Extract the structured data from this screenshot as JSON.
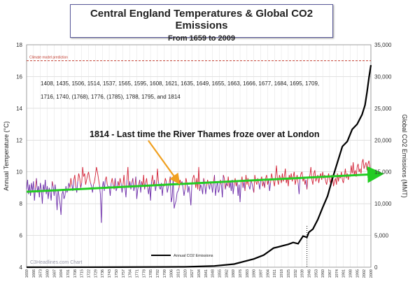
{
  "chart_data": {
    "type": "line",
    "title": "Central England Temperatures & Global CO2 Emissions",
    "subtitle": "From 1659 to 2009",
    "ylabel_left": "Annual Temperature (°C)",
    "ylabel_right": "Global CO2 Emissions (MMT)",
    "xlim": [
      1659,
      2009
    ],
    "ylim_left": [
      4,
      18
    ],
    "ylim_right": [
      0,
      35000
    ],
    "left_ticks": [
      4,
      6,
      8,
      10,
      12,
      14,
      16,
      18
    ],
    "right_ticks": [
      0,
      5000,
      10000,
      15000,
      20000,
      25000,
      30000,
      35000
    ],
    "right_tick_labels": [
      "0",
      "5,000",
      "10,000",
      "15,000",
      "20,000",
      "25,000",
      "30,000",
      "35,000"
    ],
    "x_ticks": [
      1659,
      1666,
      1673,
      1680,
      1687,
      1694,
      1701,
      1708,
      1715,
      1722,
      1729,
      1736,
      1743,
      1750,
      1757,
      1764,
      1771,
      1778,
      1785,
      1792,
      1799,
      1806,
      1813,
      1820,
      1827,
      1834,
      1841,
      1848,
      1855,
      1862,
      1869,
      1876,
      1883,
      1890,
      1897,
      1904,
      1911,
      1918,
      1925,
      1932,
      1939,
      1946,
      1953,
      1960,
      1967,
      1974,
      1981,
      1988,
      1995,
      2002,
      2009
    ],
    "model_line": {
      "label": "Climate model prediction",
      "value": 17.0,
      "color": "#c0392b"
    },
    "thames_years": "1408, 1435, 1506, 1514, 1537, 1565, 1595, 1608, 1621, 1635, 1649, 1655, 1663, 1666, 1677, 1684, 1695, 1709,",
    "thames_years_2": "1716, 1740, (1768), 1776, (1785), 1788, 1795, and 1814",
    "callout": "1814 - Last time the River Thames froze over at London",
    "legend_label": "Annual CO2 Emissions",
    "watermark": "C3Headlines.com Chart",
    "trend": {
      "x": [
        1659,
        2009
      ],
      "y": [
        8.75,
        9.85
      ],
      "color": "#22cc22"
    },
    "co2": {
      "name": "Annual CO2 Emissions",
      "color": "#000000",
      "x": [
        1659,
        1750,
        1800,
        1820,
        1850,
        1870,
        1880,
        1890,
        1900,
        1910,
        1915,
        1920,
        1925,
        1930,
        1935,
        1940,
        1944,
        1946,
        1950,
        1955,
        1960,
        1965,
        1970,
        1975,
        1980,
        1985,
        1990,
        1995,
        2000,
        2003,
        2005,
        2007,
        2009
      ],
      "y": [
        0,
        10,
        40,
        60,
        200,
        500,
        900,
        1300,
        1900,
        3000,
        3200,
        3400,
        3600,
        3900,
        3700,
        4900,
        4700,
        5500,
        6000,
        7500,
        9400,
        11200,
        14000,
        16500,
        19000,
        19800,
        21700,
        22500,
        24000,
        25500,
        27500,
        29800,
        31800
      ]
    },
    "temperature": {
      "name": "Annual Temperature",
      "colors": {
        "above": "#d22035",
        "below": "#6a2aa8"
      },
      "baseline": 9.25,
      "x_start": 1659,
      "values": [
        8.9,
        9.5,
        8.6,
        9.2,
        8.5,
        9.3,
        8.8,
        9.4,
        8.2,
        9.0,
        9.6,
        8.7,
        9.1,
        8.4,
        9.3,
        8.9,
        8.0,
        9.2,
        8.8,
        9.5,
        8.6,
        9.1,
        8.3,
        9.0,
        8.7,
        8.2,
        9.4,
        9.1,
        8.5,
        9.2,
        8.6,
        7.6,
        8.9,
        8.4,
        8.0,
        7.3,
        8.6,
        8.8,
        8.3,
        8.5,
        9.1,
        8.7,
        8.9,
        9.3,
        9.0,
        9.6,
        9.2,
        8.8,
        9.5,
        9.8,
        9.1,
        8.7,
        9.4,
        9.9,
        9.6,
        9.0,
        9.3,
        10.3,
        9.7,
        9.9,
        9.2,
        9.5,
        9.8,
        10.0,
        9.6,
        9.3,
        9.1,
        8.7,
        9.2,
        9.4,
        9.8,
        10.3,
        10.0,
        9.6,
        9.2,
        8.6,
        6.8,
        9.0,
        9.4,
        8.8,
        9.5,
        9.7,
        9.2,
        9.0,
        9.1,
        8.5,
        9.3,
        9.6,
        9.2,
        8.9,
        9.6,
        8.8,
        9.0,
        9.4,
        9.1,
        9.6,
        9.3,
        8.7,
        9.2,
        9.8,
        9.0,
        8.4,
        9.5,
        10.3,
        9.0,
        9.4,
        8.9,
        9.3,
        9.6,
        8.8,
        9.1,
        9.7,
        8.3,
        8.9,
        9.2,
        9.5,
        8.7,
        9.4,
        9.1,
        9.8,
        8.9,
        9.3,
        9.6,
        9.0,
        8.6,
        9.2,
        8.2,
        9.4,
        9.8,
        9.1,
        9.5,
        8.8,
        9.2,
        10.2,
        9.4,
        9.0,
        8.9,
        9.3,
        8.5,
        9.2,
        9.1,
        9.6,
        9.4,
        8.7,
        9.0,
        9.3,
        9.7,
        8.1,
        8.4,
        9.6,
        7.7,
        8.0,
        8.2,
        8.7,
        8.8,
        9.0,
        9.5,
        9.2,
        9.4,
        9.0,
        8.5,
        8.9,
        9.6,
        9.3,
        8.7,
        9.1,
        8.6,
        7.9,
        9.2,
        9.6,
        9.8,
        9.5,
        9.0,
        9.6,
        8.9,
        10.3,
        8.8,
        9.2,
        9.0,
        8.6,
        9.6,
        9.3,
        8.6,
        9.1,
        9.5,
        9.2,
        8.9,
        9.4,
        9.2,
        8.7,
        9.3,
        9.8,
        8.5,
        9.0,
        9.4,
        8.7,
        8.9,
        9.5,
        9.2,
        8.4,
        9.8,
        9.6,
        8.9,
        9.3,
        9.1,
        9.7,
        9.0,
        9.4,
        8.8,
        9.5,
        8.6,
        9.2,
        9.6,
        9.1,
        9.4,
        8.5,
        9.2,
        8.1,
        9.3,
        9.7,
        9.0,
        9.4,
        8.8,
        9.8,
        9.2,
        9.6,
        9.1,
        8.9,
        9.5,
        9.3,
        9.0,
        8.7,
        9.8,
        9.4,
        9.2,
        9.6,
        9.3,
        8.9,
        9.5,
        9.7,
        9.1,
        9.4,
        9.0,
        9.6,
        9.8,
        9.2,
        9.5,
        8.8,
        9.3,
        9.9,
        9.6,
        9.4,
        9.1,
        9.7,
        10.4,
        9.5,
        9.2,
        9.8,
        9.6,
        9.3,
        9.9,
        9.4,
        9.7,
        10.2,
        9.3,
        9.6,
        9.1,
        9.8,
        9.5,
        9.9,
        9.4,
        9.7,
        10.0,
        9.2,
        9.5,
        9.8,
        9.3,
        8.6,
        9.6,
        9.9,
        10.0,
        9.4,
        9.7,
        9.2,
        9.5,
        8.9,
        9.7,
        9.6,
        9.8,
        10.3,
        9.5,
        9.2,
        9.9,
        10.1,
        9.4,
        9.6,
        9.8,
        9.3,
        9.7,
        9.9,
        9.5,
        10.0,
        9.6,
        9.8,
        9.4,
        9.2,
        9.6,
        9.9,
        9.5,
        9.3,
        9.8,
        9.7,
        9.1,
        9.4,
        9.6,
        9.2,
        9.9,
        9.4,
        9.8,
        9.6,
        10.0,
        9.5,
        9.3,
        9.7,
        10.2,
        9.6,
        9.9,
        9.5,
        9.8,
        9.7,
        10.4,
        9.9,
        10.6,
        9.8,
        10.1,
        9.7,
        10.3,
        10.5,
        10.0,
        10.2,
        9.9,
        10.6,
        10.8,
        10.2,
        10.4,
        10.6,
        10.1,
        10.5,
        10.7,
        10.3,
        10.0
      ]
    }
  }
}
